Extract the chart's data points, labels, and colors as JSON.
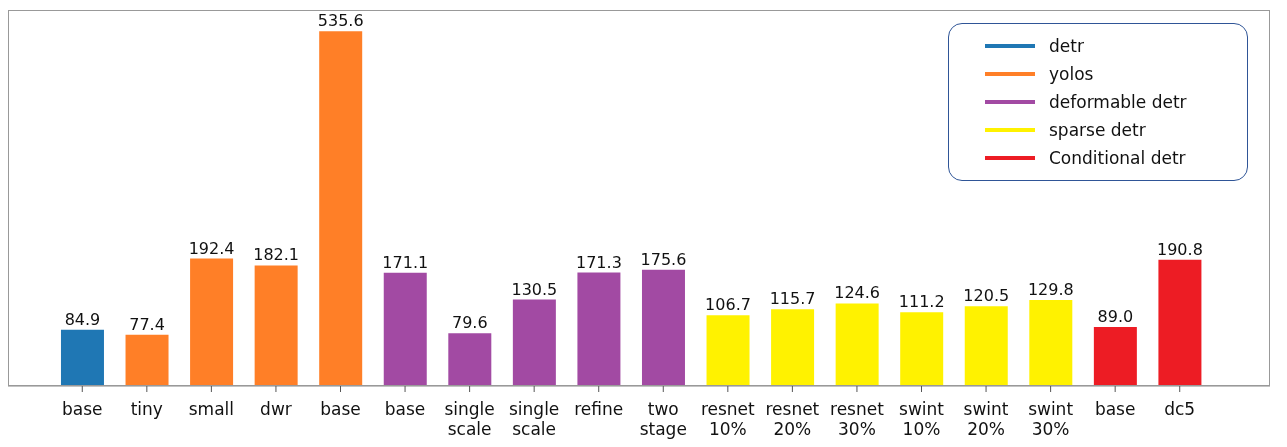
{
  "chart_data": {
    "type": "bar",
    "categories": [
      "base",
      "tiny",
      "small",
      "dwr",
      "base",
      "base",
      "single scale",
      "single scale",
      "refine",
      "two stage",
      "resnet 10%",
      "resnet 20%",
      "resnet 30%",
      "swint 10%",
      "swint 20%",
      "swint 30%",
      "base",
      "dc5"
    ],
    "series": [
      {
        "name": "detr",
        "color": "#1f77b4",
        "values": [
          84.9,
          null,
          null,
          null,
          null,
          null,
          null,
          null,
          null,
          null,
          null,
          null,
          null,
          null,
          null,
          null,
          null,
          null
        ],
        "value_labels": [
          "84.9",
          null,
          null,
          null,
          null,
          null,
          null,
          null,
          null,
          null,
          null,
          null,
          null,
          null,
          null,
          null,
          null,
          null
        ]
      },
      {
        "name": "yolos",
        "color": "#ff7f27",
        "values": [
          null,
          77.4,
          192.4,
          182.1,
          535.6,
          null,
          null,
          null,
          null,
          null,
          null,
          null,
          null,
          null,
          null,
          null,
          null,
          null
        ],
        "value_labels": [
          null,
          "77.4",
          "192.4",
          "182.1",
          "535.6",
          null,
          null,
          null,
          null,
          null,
          null,
          null,
          null,
          null,
          null,
          null,
          null,
          null
        ]
      },
      {
        "name": "deformable detr",
        "color": "#a24aa3",
        "values": [
          null,
          null,
          null,
          null,
          null,
          171.1,
          79.6,
          130.5,
          171.3,
          175.6,
          null,
          null,
          null,
          null,
          null,
          null,
          null,
          null
        ],
        "value_labels": [
          null,
          null,
          null,
          null,
          null,
          "171.1",
          "79.6",
          "130.5",
          "171.3",
          "175.6",
          null,
          null,
          null,
          null,
          null,
          null,
          null,
          null
        ]
      },
      {
        "name": "sparse detr",
        "color": "#fff200",
        "values": [
          null,
          null,
          null,
          null,
          null,
          null,
          null,
          null,
          null,
          null,
          106.7,
          115.7,
          124.6,
          111.2,
          120.5,
          129.8,
          null,
          null
        ],
        "value_labels": [
          null,
          null,
          null,
          null,
          null,
          null,
          null,
          null,
          null,
          null,
          "106.7",
          "115.7",
          "124.6",
          "111.2",
          "120.5",
          "129.8",
          null,
          null
        ]
      },
      {
        "name": "Conditional detr",
        "color": "#ed1c24",
        "values": [
          null,
          null,
          null,
          null,
          null,
          null,
          null,
          null,
          null,
          null,
          null,
          null,
          null,
          null,
          null,
          null,
          89.0,
          190.8
        ],
        "value_labels": [
          null,
          null,
          null,
          null,
          null,
          null,
          null,
          null,
          null,
          null,
          null,
          null,
          null,
          null,
          null,
          null,
          "89.0",
          "190.8"
        ]
      }
    ],
    "legend": "top right"
  }
}
